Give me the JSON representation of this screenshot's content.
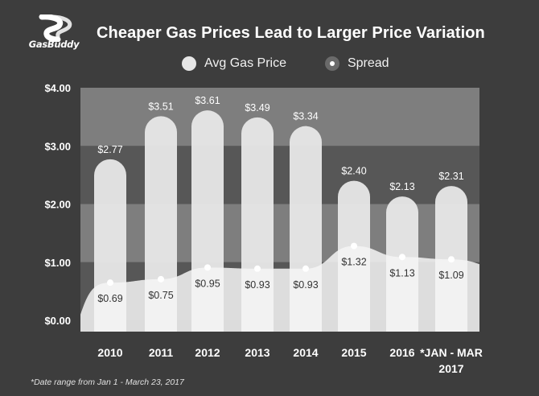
{
  "title": "Cheaper Gas Prices Lead to Larger Price Variation",
  "logo": {
    "text": "GasBuddy",
    "icon": "gasbuddy-road-logo-icon"
  },
  "legend": {
    "avg_label": "Avg Gas Price",
    "spread_label": "Spread"
  },
  "footnote": "*Date range from Jan 1 - March 23, 2017",
  "colors": {
    "background": "#3d3d3d",
    "bar": "#e8e8e8",
    "spread_area": "#f5f5f5",
    "band_dark": "#5a5a5a",
    "band_light": "#858585",
    "text": "#ffffff"
  },
  "chart_data": {
    "type": "bar",
    "title": "Cheaper Gas Prices Lead to Larger Price Variation",
    "xlabel": "",
    "ylabel": "",
    "ylim": [
      0,
      4
    ],
    "y_ticks": [
      "$0.00",
      "$1.00",
      "$2.00",
      "$3.00",
      "$4.00"
    ],
    "y_tick_values": [
      0,
      1,
      2,
      3,
      4
    ],
    "categories": [
      "2010",
      "2011",
      "2012",
      "2013",
      "2014",
      "2015",
      "2016",
      "*JAN - MAR 2017"
    ],
    "series": [
      {
        "name": "Avg Gas Price",
        "type": "bar",
        "values": [
          2.77,
          3.51,
          3.61,
          3.49,
          3.34,
          2.4,
          2.13,
          2.31
        ],
        "labels": [
          "$2.77",
          "$3.51",
          "$3.61",
          "$3.49",
          "$3.34",
          "$2.40",
          "$2.13",
          "$2.31"
        ]
      },
      {
        "name": "Spread",
        "type": "area",
        "values": [
          0.69,
          0.75,
          0.95,
          0.93,
          0.93,
          1.32,
          1.13,
          1.09
        ],
        "labels": [
          "$0.69",
          "$0.75",
          "$0.95",
          "$0.93",
          "$0.93",
          "$1.32",
          "$1.13",
          "$1.09"
        ]
      }
    ]
  }
}
